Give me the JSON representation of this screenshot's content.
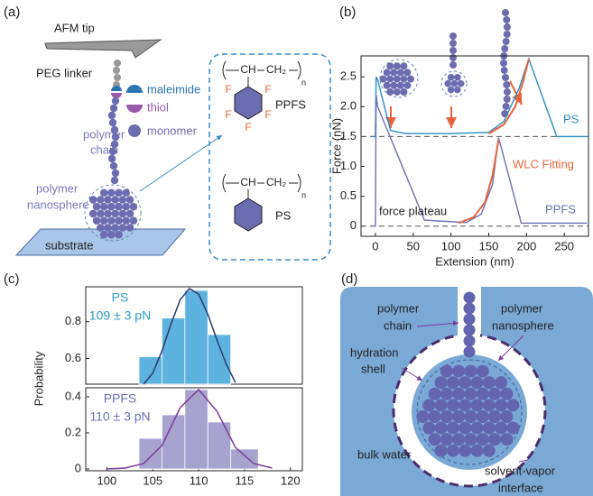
{
  "panel_a": {
    "label": "(a)",
    "afm_tip": "AFM tip",
    "peg_linker": "PEG linker",
    "legend": [
      "maleimide",
      "thiol",
      "monomer"
    ],
    "chain": [
      "polymer",
      "chain"
    ],
    "nanosphere": [
      "polymer",
      "nanosphere"
    ],
    "substrate": "substrate",
    "structures": [
      {
        "name": "PPFS",
        "backbone": [
          "CH",
          "CH₂"
        ],
        "subscript": "n",
        "substituents": [
          "F",
          "F",
          "F",
          "F",
          "F"
        ]
      },
      {
        "name": "PS",
        "backbone": [
          "CH",
          "CH₂"
        ],
        "subscript": "n"
      }
    ]
  },
  "panel_b_label": "(b)",
  "panel_c_label": "(c)",
  "chart_data": [
    {
      "type": "line",
      "x_label": "Extension (nm)",
      "y_label": "Force (nN)",
      "xlim": [
        -19,
        282
      ],
      "ylim": [
        -0.17,
        2.85
      ],
      "xticks": [
        0,
        50,
        100,
        150,
        200,
        250
      ],
      "yticks": [
        0,
        0.5,
        {
          "value": 1,
          "label": "1.0"
        },
        1.5,
        {
          "value": 2,
          "label": "2.0"
        },
        2.5
      ],
      "reference_lines": [
        1.5,
        0
      ],
      "annotations": [
        "force plateau"
      ],
      "series": [
        {
          "name": "PS",
          "color": "#2b8cc4",
          "x": [
            -5,
            0,
            1,
            3,
            20,
            40,
            100,
            150,
            170,
            190,
            203,
            240,
            280
          ],
          "values": [
            1.5,
            1.5,
            2.5,
            2.45,
            1.6,
            1.55,
            1.55,
            1.57,
            1.75,
            2.3,
            2.8,
            1.5,
            1.5
          ]
        },
        {
          "name": "PPFS",
          "color": "#6b6fb5",
          "x": [
            -5,
            0,
            1,
            3,
            65,
            120,
            140,
            155,
            163,
            193,
            280
          ],
          "values": [
            0,
            0,
            2.2,
            2.0,
            0.1,
            0.06,
            0.2,
            0.7,
            1.48,
            0.05,
            0.05
          ]
        },
        {
          "name": "WLC Fitting",
          "color": "#e8643c",
          "x": [
            110,
            130,
            145,
            155,
            163,
            164,
            150,
            170,
            185,
            195,
            203
          ],
          "values": [
            0.05,
            0.15,
            0.4,
            0.85,
            1.45,
            null,
            1.55,
            1.7,
            2.0,
            2.4,
            2.8
          ]
        }
      ]
    },
    {
      "type": "histogram",
      "xlim": [
        97.7,
        121.3
      ],
      "ylim": [
        0.46,
        0.99
      ],
      "yticks": [
        0.6,
        0.8
      ],
      "series": [
        {
          "name": "PS",
          "label": "109 ± 3 pN",
          "color": "#5db3dd",
          "fit_color": "#2d3a6e",
          "bins": [
            103.5,
            106,
            108.5,
            111,
            113.5
          ],
          "values": [
            0.61,
            0.82,
            0.97,
            0.73
          ],
          "fit": {
            "x": [
              104,
              105,
              106,
              107,
              108,
              109,
              110,
              111,
              112,
              113,
              114
            ],
            "values": [
              0.46,
              0.52,
              0.64,
              0.79,
              0.92,
              0.98,
              0.95,
              0.84,
              0.7,
              0.57,
              0.47
            ]
          }
        }
      ]
    },
    {
      "type": "histogram",
      "y_label": "Probability",
      "xlim": [
        97.7,
        121.3
      ],
      "ylim": [
        -0.01,
        0.45
      ],
      "xticks": [
        100,
        105,
        110,
        115,
        120
      ],
      "yticks": [
        0,
        0.2,
        0.4
      ],
      "series": [
        {
          "name": "PPFS",
          "label": "110 ± 3 pN",
          "color": "#a7a3cf",
          "fit_color": "#7a3d9a",
          "bins": [
            103.5,
            106,
            108.5,
            111,
            113.5,
            116.5
          ],
          "values": [
            0.17,
            0.3,
            0.44,
            0.26,
            0.11
          ],
          "fit": {
            "x": [
              100,
              102,
              104,
              106,
              108,
              110,
              112,
              114,
              116,
              118
            ],
            "values": [
              0.0,
              0.005,
              0.03,
              0.13,
              0.34,
              0.44,
              0.32,
              0.12,
              0.03,
              0.005
            ]
          }
        }
      ]
    }
  ],
  "panel_d": {
    "label": "(d)",
    "chain": [
      "polymer",
      "chain"
    ],
    "nanosphere": [
      "polymer",
      "nanosphere"
    ],
    "hydration_shell": [
      "hydration",
      "shell"
    ],
    "bulk_water": "bulk water",
    "interface": [
      "solvent-vapor",
      "interface"
    ]
  }
}
